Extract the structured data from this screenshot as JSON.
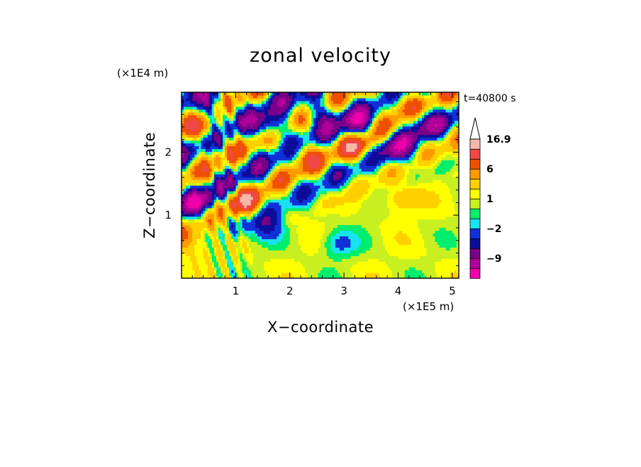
{
  "chart_data": {
    "type": "heatmap",
    "title": "zonal velocity",
    "time_label": "t=40800 s",
    "xlabel": "X−coordinate",
    "ylabel": "Z−coordinate",
    "x_unit": "(×1E5 m)",
    "y_unit": "(×1E4 m)",
    "xlim": [
      0,
      5.12
    ],
    "ylim": [
      0,
      2.95
    ],
    "x_ticks": [
      1,
      2,
      3,
      4,
      5
    ],
    "x_tick_labels": [
      "1",
      "2",
      "3",
      "4",
      "5"
    ],
    "y_ticks": [
      1,
      2
    ],
    "y_tick_labels": [
      "1",
      "2"
    ],
    "colorbar": {
      "boundaries": [
        -16.9,
        -12,
        -9,
        -6,
        -4,
        -2,
        -1,
        0,
        1,
        2,
        4,
        6,
        9,
        12,
        16.9
      ],
      "colors": [
        "#ee00aa",
        "#b0009a",
        "#7a0088",
        "#0c0c99",
        "#1030d8",
        "#19e3f0",
        "#00ee6e",
        "#c8f020",
        "#ffff00",
        "#ffd000",
        "#ff9a00",
        "#ee5000",
        "#f04848",
        "#f5b8a8"
      ],
      "labels": [
        {
          "value": 16.9,
          "text": "16.9"
        },
        {
          "value": 6,
          "text": "6"
        },
        {
          "value": 1,
          "text": "1"
        },
        {
          "value": -2,
          "text": "−2"
        },
        {
          "value": -9,
          "text": "−9"
        }
      ],
      "extend_max": true
    },
    "field_features": [
      {
        "kind": "blob",
        "x": 0.55,
        "z": 2.7,
        "value": -5
      },
      {
        "kind": "blob",
        "x": 1.65,
        "z": 2.4,
        "value": -6
      },
      {
        "kind": "blob",
        "x": 2.5,
        "z": 2.65,
        "value": -5
      },
      {
        "kind": "blob",
        "x": 3.25,
        "z": 2.45,
        "value": -5
      },
      {
        "kind": "blob",
        "x": 3.95,
        "z": 2.05,
        "value": -5
      },
      {
        "kind": "blob",
        "x": 4.45,
        "z": 2.5,
        "value": -4
      },
      {
        "kind": "blob",
        "x": 0.35,
        "z": 1.2,
        "value": -5
      },
      {
        "kind": "blob",
        "x": 1.55,
        "z": 0.85,
        "value": -4
      },
      {
        "kind": "blob",
        "x": 2.9,
        "z": 0.55,
        "value": -2.5
      },
      {
        "kind": "blob",
        "x": 4.05,
        "z": 1.25,
        "value": 2
      },
      {
        "kind": "blob",
        "x": 0.45,
        "z": 2.35,
        "value": 4
      },
      {
        "kind": "blob",
        "x": 1.15,
        "z": 1.2,
        "value": 5
      },
      {
        "kind": "blob",
        "x": 3.3,
        "z": 2.05,
        "value": 5
      },
      {
        "kind": "blob",
        "x": 2.2,
        "z": 2.0,
        "value": 4
      },
      {
        "kind": "blob",
        "x": 4.0,
        "z": 2.8,
        "value": 4
      },
      {
        "kind": "blob",
        "x": 3.35,
        "z": 1.15,
        "value": -0.5
      },
      {
        "kind": "blob",
        "x": 0.2,
        "z": 0.55,
        "value": 3
      }
    ]
  }
}
